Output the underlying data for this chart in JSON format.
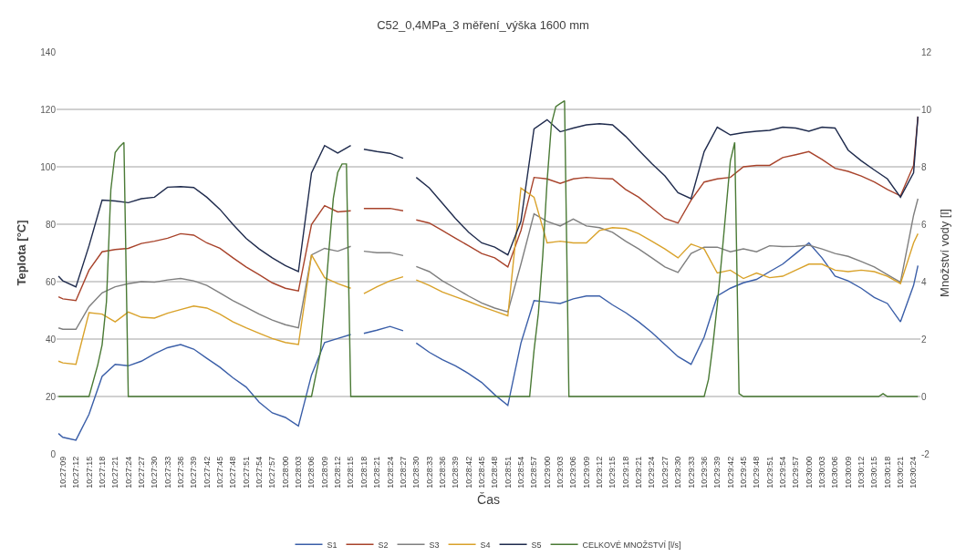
{
  "chart_data": {
    "type": "line",
    "title": "C52_0,4MPa_3 měření_výška 1600 mm",
    "xlabel": "Čas",
    "ylabel": "Teplota [°C]",
    "y2label": "Množství vody [l]",
    "x": [
      10.452222,
      10.4525,
      10.453333,
      10.454167,
      10.455,
      10.455833,
      10.456667,
      10.4575,
      10.458333,
      10.459167,
      10.46,
      10.460833,
      10.461667,
      10.4625,
      10.463333,
      10.464167,
      10.465,
      10.465833,
      10.466667,
      10.4675,
      10.468333,
      10.469167,
      10.47,
      10.470833,
      10.47125,
      10.471667,
      10.4725,
      10.473333,
      10.474167,
      10.474583,
      10.475,
      10.475833,
      10.476667,
      10.4775,
      10.478333,
      10.479167,
      10.48,
      10.480833,
      10.481667,
      10.4825,
      10.483333,
      10.484167,
      10.485,
      10.485833,
      10.486667,
      10.4875,
      10.488333,
      10.489167,
      10.49,
      10.490833,
      10.491667,
      10.4925,
      10.493333,
      10.494167,
      10.495,
      10.495833,
      10.496667,
      10.4975,
      10.498333,
      10.499167,
      10.5,
      10.500833,
      10.501667,
      10.5025,
      10.503333,
      10.504167,
      10.505,
      10.505833,
      10.506667,
      10.506944
    ],
    "series": [
      {
        "name": "S1",
        "color": "#3a5ea8",
        "values": [
          7.1,
          5.8,
          4.8,
          13.8,
          27.0,
          31.2,
          30.7,
          32.3,
          34.9,
          37.0,
          38.1,
          36.5,
          33.3,
          30.2,
          26.5,
          23.3,
          18.0,
          14.3,
          12.7,
          9.7,
          27.5,
          38.8,
          40.2,
          41.6,
          null,
          42.0,
          43.1,
          44.4,
          42.9,
          null,
          38.6,
          35.4,
          32.8,
          30.7,
          28.0,
          24.9,
          20.6,
          16.9,
          38.6,
          53.4,
          52.9,
          52.4,
          54.0,
          55.0,
          55.0,
          51.9,
          49.2,
          46.0,
          42.3,
          38.1,
          33.9,
          31.2,
          40.7,
          55.0,
          57.7,
          59.6,
          60.8,
          63.5,
          66.1,
          69.8,
          73.5,
          68.3,
          61.9,
          60.3,
          57.7,
          54.5,
          52.4,
          46.0,
          58.7,
          65.6
        ]
      },
      {
        "name": "S2",
        "color": "#a8432b",
        "values": [
          54.7,
          54.0,
          53.4,
          64.0,
          70.4,
          71.2,
          71.6,
          73.3,
          74.1,
          75.1,
          76.7,
          76.2,
          73.5,
          71.6,
          68.3,
          65.1,
          62.4,
          59.6,
          57.7,
          56.8,
          79.9,
          86.5,
          84.3,
          84.7,
          null,
          85.5,
          85.5,
          85.5,
          84.7,
          null,
          81.5,
          80.4,
          77.8,
          75.1,
          72.5,
          69.8,
          68.3,
          65.1,
          77.8,
          96.3,
          95.8,
          94.2,
          95.8,
          96.3,
          96.0,
          95.8,
          92.1,
          89.4,
          85.7,
          82.0,
          80.4,
          88.4,
          94.7,
          95.8,
          96.3,
          100.0,
          100.5,
          100.5,
          103.2,
          104.2,
          105.3,
          102.6,
          99.5,
          98.4,
          96.8,
          94.7,
          92.1,
          89.9,
          100.5,
          117.5
        ]
      },
      {
        "name": "S3",
        "color": "#7f7f7f",
        "values": [
          43.9,
          43.4,
          43.4,
          51.3,
          56.1,
          58.2,
          59.3,
          60.0,
          59.8,
          60.6,
          61.1,
          60.3,
          58.7,
          56.1,
          53.4,
          51.1,
          48.7,
          46.6,
          45.0,
          43.9,
          69.3,
          71.6,
          70.6,
          72.3,
          null,
          70.6,
          70.1,
          70.1,
          69.1,
          null,
          65.3,
          63.5,
          60.3,
          57.7,
          55.0,
          52.6,
          50.8,
          49.5,
          66.1,
          83.6,
          81.0,
          79.4,
          81.8,
          79.4,
          78.8,
          77.2,
          74.1,
          71.4,
          68.3,
          65.1,
          63.2,
          69.8,
          72.0,
          72.0,
          70.4,
          71.4,
          70.4,
          72.5,
          72.2,
          72.3,
          72.7,
          71.4,
          69.8,
          68.8,
          67.0,
          65.1,
          62.4,
          59.8,
          83.1,
          88.9
        ]
      },
      {
        "name": "S4",
        "color": "#d9a22a",
        "values": [
          32.3,
          31.7,
          31.2,
          49.2,
          48.7,
          46.0,
          49.4,
          47.6,
          47.3,
          49.0,
          50.3,
          51.5,
          50.8,
          48.7,
          46.0,
          43.9,
          42.0,
          40.2,
          38.8,
          38.1,
          69.3,
          61.4,
          59.3,
          57.7,
          null,
          55.8,
          58.2,
          60.3,
          61.7,
          null,
          60.6,
          58.7,
          56.4,
          54.7,
          53.1,
          51.3,
          49.7,
          48.1,
          92.6,
          89.4,
          73.5,
          74.1,
          73.5,
          73.5,
          77.8,
          78.8,
          78.5,
          76.7,
          74.1,
          71.4,
          68.3,
          73.1,
          71.4,
          63.0,
          64.0,
          61.1,
          63.0,
          61.4,
          61.9,
          64.0,
          66.1,
          66.1,
          64.0,
          63.5,
          64.0,
          63.5,
          61.9,
          59.3,
          73.5,
          76.7
        ]
      },
      {
        "name": "S5",
        "color": "#1f2b4d",
        "values": [
          61.9,
          60.3,
          58.2,
          72.5,
          88.4,
          88.1,
          87.5,
          88.9,
          89.4,
          92.9,
          93.1,
          92.8,
          89.4,
          85.2,
          79.9,
          75.1,
          71.4,
          68.3,
          65.6,
          63.5,
          97.9,
          107.4,
          104.8,
          107.4,
          null,
          106.1,
          105.3,
          104.7,
          103.0,
          null,
          96.3,
          92.6,
          87.3,
          82.0,
          77.2,
          73.5,
          72.0,
          69.3,
          81.0,
          113.2,
          116.4,
          112.2,
          113.5,
          114.6,
          115.0,
          114.6,
          110.6,
          105.8,
          101.1,
          96.8,
          91.0,
          88.9,
          105.3,
          113.8,
          111.1,
          111.9,
          112.4,
          112.7,
          113.8,
          113.5,
          112.4,
          113.8,
          113.5,
          105.8,
          102.1,
          98.9,
          95.8,
          89.4,
          97.9,
          117.5
        ]
      },
      {
        "name": "CELKOVÉ MNOŽSTVÍ [l/s]",
        "color": "#4a7a35",
        "axis": "y2",
        "x": [
          10.452222,
          10.454167,
          10.454722,
          10.455,
          10.455278,
          10.455556,
          10.455833,
          10.456111,
          10.456389,
          10.456667,
          10.468333,
          10.468889,
          10.469167,
          10.469444,
          10.469722,
          10.47,
          10.470278,
          10.470556,
          10.470833,
          10.482222,
          10.4825,
          10.482778,
          10.483056,
          10.483333,
          10.483611,
          10.483889,
          10.484167,
          10.484444,
          10.484722,
          10.493333,
          10.493611,
          10.493889,
          10.494167,
          10.494444,
          10.494722,
          10.495,
          10.495278,
          10.495556,
          10.495833,
          10.504444,
          10.504722,
          10.505,
          10.506944
        ],
        "values": [
          0,
          0,
          1.1,
          1.8,
          3.3,
          7.2,
          8.5,
          8.7,
          8.85,
          0,
          0,
          1.5,
          3.2,
          5.1,
          6.9,
          7.8,
          8.1,
          8.1,
          0,
          0,
          1.6,
          2.9,
          4.9,
          7.5,
          9.5,
          10.1,
          10.2,
          10.3,
          0,
          0,
          0.6,
          1.8,
          3.2,
          4.8,
          6.5,
          8.2,
          8.85,
          0.1,
          0,
          0,
          0.1,
          0,
          0
        ]
      }
    ],
    "xlim": [
      10.4521,
      10.5071
    ],
    "xticks": [
      {
        "value": 10.4525,
        "label": "10:27:09"
      },
      {
        "value": 10.453333,
        "label": "10:27:12"
      },
      {
        "value": 10.454167,
        "label": "10:27:15"
      },
      {
        "value": 10.455,
        "label": "10:27:18"
      },
      {
        "value": 10.455833,
        "label": "10:27:21"
      },
      {
        "value": 10.456667,
        "label": "10:27:24"
      },
      {
        "value": 10.4575,
        "label": "10:27:27"
      },
      {
        "value": 10.458333,
        "label": "10:27:30"
      },
      {
        "value": 10.459167,
        "label": "10:27:33"
      },
      {
        "value": 10.46,
        "label": "10:27:36"
      },
      {
        "value": 10.460833,
        "label": "10:27:39"
      },
      {
        "value": 10.461667,
        "label": "10:27:42"
      },
      {
        "value": 10.4625,
        "label": "10:27:45"
      },
      {
        "value": 10.463333,
        "label": "10:27:48"
      },
      {
        "value": 10.464167,
        "label": "10:27:51"
      },
      {
        "value": 10.465,
        "label": "10:27:54"
      },
      {
        "value": 10.465833,
        "label": "10:27:57"
      },
      {
        "value": 10.466667,
        "label": "10:28:00"
      },
      {
        "value": 10.4675,
        "label": "10:28:03"
      },
      {
        "value": 10.468333,
        "label": "10:28:06"
      },
      {
        "value": 10.469167,
        "label": "10:28:09"
      },
      {
        "value": 10.47,
        "label": "10:28:12"
      },
      {
        "value": 10.470833,
        "label": "10:28:15"
      },
      {
        "value": 10.471667,
        "label": "10:28:18"
      },
      {
        "value": 10.4725,
        "label": "10:28:21"
      },
      {
        "value": 10.473333,
        "label": "10:28:24"
      },
      {
        "value": 10.474167,
        "label": "10:28:27"
      },
      {
        "value": 10.475,
        "label": "10:28:30"
      },
      {
        "value": 10.475833,
        "label": "10:28:33"
      },
      {
        "value": 10.476667,
        "label": "10:28:36"
      },
      {
        "value": 10.4775,
        "label": "10:28:39"
      },
      {
        "value": 10.478333,
        "label": "10:28:42"
      },
      {
        "value": 10.479167,
        "label": "10:28:45"
      },
      {
        "value": 10.48,
        "label": "10:28:48"
      },
      {
        "value": 10.480833,
        "label": "10:28:51"
      },
      {
        "value": 10.481667,
        "label": "10:28:54"
      },
      {
        "value": 10.4825,
        "label": "10:28:57"
      },
      {
        "value": 10.483333,
        "label": "10:29:00"
      },
      {
        "value": 10.484167,
        "label": "10:29:03"
      },
      {
        "value": 10.485,
        "label": "10:29:06"
      },
      {
        "value": 10.485833,
        "label": "10:29:09"
      },
      {
        "value": 10.486667,
        "label": "10:29:12"
      },
      {
        "value": 10.4875,
        "label": "10:29:15"
      },
      {
        "value": 10.488333,
        "label": "10:29:18"
      },
      {
        "value": 10.489167,
        "label": "10:29:21"
      },
      {
        "value": 10.49,
        "label": "10:29:24"
      },
      {
        "value": 10.490833,
        "label": "10:29:27"
      },
      {
        "value": 10.491667,
        "label": "10:29:30"
      },
      {
        "value": 10.4925,
        "label": "10:29:33"
      },
      {
        "value": 10.493333,
        "label": "10:29:36"
      },
      {
        "value": 10.494167,
        "label": "10:29:39"
      },
      {
        "value": 10.495,
        "label": "10:29:42"
      },
      {
        "value": 10.495833,
        "label": "10:29:45"
      },
      {
        "value": 10.496667,
        "label": "10:29:48"
      },
      {
        "value": 10.4975,
        "label": "10:29:51"
      },
      {
        "value": 10.498333,
        "label": "10:29:54"
      },
      {
        "value": 10.499167,
        "label": "10:29:57"
      },
      {
        "value": 10.5,
        "label": "10:30:00"
      },
      {
        "value": 10.500833,
        "label": "10:30:03"
      },
      {
        "value": 10.501667,
        "label": "10:30:06"
      },
      {
        "value": 10.5025,
        "label": "10:30:09"
      },
      {
        "value": 10.503333,
        "label": "10:30:12"
      },
      {
        "value": 10.504167,
        "label": "10:30:15"
      },
      {
        "value": 10.505,
        "label": "10:30:18"
      },
      {
        "value": 10.505833,
        "label": "10:30:21"
      },
      {
        "value": 10.506667,
        "label": "10:30:24"
      }
    ],
    "ylim": [
      0,
      140
    ],
    "yticks": [
      0,
      20,
      40,
      60,
      80,
      100,
      120,
      140
    ],
    "y2lim": [
      -2,
      12
    ],
    "y2ticks": [
      -2,
      0,
      2,
      4,
      6,
      8,
      10,
      12
    ],
    "grid": "y",
    "legend": "bottom",
    "marker": "none",
    "line_style": "solid"
  }
}
